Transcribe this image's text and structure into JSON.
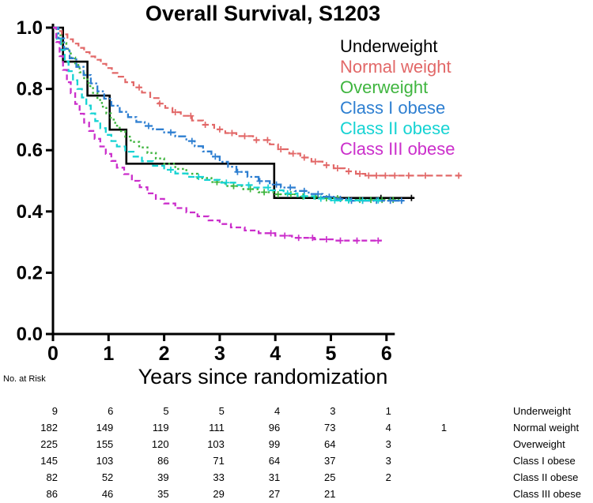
{
  "chart_data": {
    "type": "line",
    "subtype": "kaplan-meier-step",
    "title": "Overall Survival, S1203",
    "xlabel": "Years since randomization",
    "ylabel": "",
    "xlim": [
      0,
      7.5
    ],
    "ylim": [
      0.0,
      1.0
    ],
    "xticks": [
      0,
      1,
      2,
      3,
      4,
      5,
      6
    ],
    "xtick_labels": [
      "0",
      "1",
      "2",
      "3",
      "4",
      "5",
      "6"
    ],
    "yticks": [
      0.0,
      0.2,
      0.4,
      0.6,
      0.8,
      1.0
    ],
    "ytick_labels": [
      "0.0",
      "0.2",
      "0.4",
      "0.6",
      "0.8",
      "1.0"
    ],
    "grid": false,
    "legend_position": "upper-right-inside",
    "series": [
      {
        "name": "Underweight",
        "color": "#000000",
        "dash": "",
        "width": 2.6,
        "points": [
          [
            0,
            1.0
          ],
          [
            0.18,
            0.889
          ],
          [
            0.62,
            0.778
          ],
          [
            1.02,
            0.667
          ],
          [
            1.32,
            0.556
          ],
          [
            3.98,
            0.444
          ],
          [
            6.5,
            0.444
          ]
        ],
        "censor_x": [
          5.9,
          6.45
        ]
      },
      {
        "name": "Normal weight",
        "color": "#e26868",
        "dash": "8 4",
        "width": 2.2,
        "points": [
          [
            0,
            1.0
          ],
          [
            0.08,
            0.989
          ],
          [
            0.16,
            0.978
          ],
          [
            0.26,
            0.962
          ],
          [
            0.36,
            0.948
          ],
          [
            0.46,
            0.934
          ],
          [
            0.56,
            0.92
          ],
          [
            0.66,
            0.906
          ],
          [
            0.76,
            0.895
          ],
          [
            0.86,
            0.882
          ],
          [
            0.96,
            0.868
          ],
          [
            1.06,
            0.852
          ],
          [
            1.18,
            0.84
          ],
          [
            1.3,
            0.822
          ],
          [
            1.45,
            0.805
          ],
          [
            1.6,
            0.788
          ],
          [
            1.75,
            0.77
          ],
          [
            1.9,
            0.752
          ],
          [
            2.02,
            0.738
          ],
          [
            2.15,
            0.724
          ],
          [
            2.3,
            0.712
          ],
          [
            2.5,
            0.697
          ],
          [
            2.7,
            0.683
          ],
          [
            2.9,
            0.668
          ],
          [
            3.1,
            0.656
          ],
          [
            3.3,
            0.646
          ],
          [
            3.6,
            0.633
          ],
          [
            3.9,
            0.619
          ],
          [
            4.05,
            0.603
          ],
          [
            4.25,
            0.589
          ],
          [
            4.45,
            0.576
          ],
          [
            4.65,
            0.563
          ],
          [
            4.85,
            0.551
          ],
          [
            5.05,
            0.541
          ],
          [
            5.25,
            0.531
          ],
          [
            5.45,
            0.523
          ],
          [
            5.62,
            0.517
          ],
          [
            7.35,
            0.514
          ]
        ],
        "censor_x": [
          1.55,
          1.92,
          2.2,
          2.48,
          2.74,
          3.0,
          3.22,
          3.45,
          3.66,
          3.86,
          4.1,
          4.32,
          4.52,
          4.72,
          4.92,
          5.12,
          5.32,
          5.52,
          5.68,
          5.82,
          5.98,
          6.15,
          6.4,
          6.7,
          7.3
        ]
      },
      {
        "name": "Overweight",
        "color": "#3fb53f",
        "dash": "2.5 3.5",
        "width": 2.4,
        "points": [
          [
            0,
            1.0
          ],
          [
            0.08,
            0.975
          ],
          [
            0.16,
            0.95
          ],
          [
            0.24,
            0.926
          ],
          [
            0.32,
            0.902
          ],
          [
            0.4,
            0.878
          ],
          [
            0.48,
            0.854
          ],
          [
            0.56,
            0.831
          ],
          [
            0.64,
            0.809
          ],
          [
            0.72,
            0.787
          ],
          [
            0.8,
            0.764
          ],
          [
            0.88,
            0.742
          ],
          [
            0.96,
            0.72
          ],
          [
            1.04,
            0.7
          ],
          [
            1.12,
            0.68
          ],
          [
            1.2,
            0.662
          ],
          [
            1.3,
            0.644
          ],
          [
            1.4,
            0.627
          ],
          [
            1.55,
            0.609
          ],
          [
            1.7,
            0.591
          ],
          [
            1.85,
            0.573
          ],
          [
            2.0,
            0.556
          ],
          [
            2.2,
            0.539
          ],
          [
            2.4,
            0.523
          ],
          [
            2.6,
            0.509
          ],
          [
            2.85,
            0.496
          ],
          [
            3.1,
            0.483
          ],
          [
            3.4,
            0.473
          ],
          [
            3.7,
            0.463
          ],
          [
            4.0,
            0.456
          ],
          [
            4.4,
            0.449
          ],
          [
            4.8,
            0.443
          ],
          [
            5.2,
            0.438
          ],
          [
            6.25,
            0.433
          ]
        ],
        "censor_x": [
          2.95,
          3.25,
          3.55,
          3.8,
          4.05,
          4.28,
          4.5,
          4.72,
          4.92,
          5.12,
          5.32,
          5.52,
          5.72,
          5.92,
          6.12
        ]
      },
      {
        "name": "Class I obese",
        "color": "#2e7fd1",
        "dash": "10 3 2.5 3",
        "width": 2.3,
        "points": [
          [
            0,
            1.0
          ],
          [
            0.1,
            0.965
          ],
          [
            0.2,
            0.931
          ],
          [
            0.3,
            0.9
          ],
          [
            0.42,
            0.872
          ],
          [
            0.55,
            0.845
          ],
          [
            0.68,
            0.818
          ],
          [
            0.8,
            0.792
          ],
          [
            0.92,
            0.768
          ],
          [
            1.05,
            0.745
          ],
          [
            1.2,
            0.725
          ],
          [
            1.35,
            0.708
          ],
          [
            1.5,
            0.692
          ],
          [
            1.65,
            0.679
          ],
          [
            1.8,
            0.668
          ],
          [
            2.0,
            0.658
          ],
          [
            2.2,
            0.645
          ],
          [
            2.4,
            0.63
          ],
          [
            2.55,
            0.613
          ],
          [
            2.7,
            0.596
          ],
          [
            2.85,
            0.579
          ],
          [
            3.0,
            0.562
          ],
          [
            3.15,
            0.546
          ],
          [
            3.3,
            0.529
          ],
          [
            3.5,
            0.513
          ],
          [
            3.7,
            0.499
          ],
          [
            3.9,
            0.488
          ],
          [
            4.1,
            0.478
          ],
          [
            4.35,
            0.467
          ],
          [
            4.6,
            0.457
          ],
          [
            4.85,
            0.448
          ],
          [
            5.1,
            0.441
          ],
          [
            5.35,
            0.435
          ],
          [
            6.3,
            0.431
          ]
        ],
        "censor_x": [
          1.72,
          2.12,
          2.5,
          2.92,
          3.32,
          3.72,
          4.02,
          4.27,
          4.52,
          4.77,
          4.97,
          5.17,
          5.37,
          5.57,
          5.82,
          6.07,
          6.27
        ]
      },
      {
        "name": "Class II obese",
        "color": "#16d3d3",
        "dash": "8 4",
        "width": 2.3,
        "points": [
          [
            0,
            1.0
          ],
          [
            0.07,
            0.963
          ],
          [
            0.14,
            0.927
          ],
          [
            0.21,
            0.89
          ],
          [
            0.28,
            0.858
          ],
          [
            0.36,
            0.828
          ],
          [
            0.44,
            0.8
          ],
          [
            0.52,
            0.772
          ],
          [
            0.6,
            0.746
          ],
          [
            0.68,
            0.72
          ],
          [
            0.76,
            0.695
          ],
          [
            0.85,
            0.672
          ],
          [
            0.95,
            0.65
          ],
          [
            1.05,
            0.63
          ],
          [
            1.15,
            0.612
          ],
          [
            1.3,
            0.595
          ],
          [
            1.45,
            0.579
          ],
          [
            1.6,
            0.564
          ],
          [
            1.8,
            0.549
          ],
          [
            2.0,
            0.536
          ],
          [
            2.2,
            0.524
          ],
          [
            2.45,
            0.513
          ],
          [
            2.7,
            0.503
          ],
          [
            3.0,
            0.494
          ],
          [
            3.3,
            0.486
          ],
          [
            3.6,
            0.478
          ],
          [
            3.9,
            0.469
          ],
          [
            4.15,
            0.459
          ],
          [
            4.4,
            0.45
          ],
          [
            4.7,
            0.442
          ],
          [
            5.0,
            0.436
          ],
          [
            5.9,
            0.431
          ]
        ],
        "censor_x": [
          2.12,
          2.62,
          3.12,
          3.52,
          3.87,
          4.22,
          4.52,
          4.82,
          5.07,
          5.32,
          5.57,
          5.85
        ]
      },
      {
        "name": "Class III obese",
        "color": "#cb2fcb",
        "dash": "7 4",
        "width": 2.3,
        "points": [
          [
            0,
            1.0
          ],
          [
            0.06,
            0.953
          ],
          [
            0.12,
            0.907
          ],
          [
            0.18,
            0.862
          ],
          [
            0.25,
            0.822
          ],
          [
            0.32,
            0.786
          ],
          [
            0.4,
            0.751
          ],
          [
            0.48,
            0.719
          ],
          [
            0.56,
            0.69
          ],
          [
            0.65,
            0.663
          ],
          [
            0.75,
            0.637
          ],
          [
            0.85,
            0.612
          ],
          [
            0.95,
            0.588
          ],
          [
            1.05,
            0.565
          ],
          [
            1.15,
            0.543
          ],
          [
            1.28,
            0.522
          ],
          [
            1.42,
            0.5
          ],
          [
            1.56,
            0.479
          ],
          [
            1.7,
            0.459
          ],
          [
            1.85,
            0.441
          ],
          [
            2.0,
            0.426
          ],
          [
            2.2,
            0.411
          ],
          [
            2.4,
            0.397
          ],
          [
            2.6,
            0.384
          ],
          [
            2.8,
            0.371
          ],
          [
            3.0,
            0.359
          ],
          [
            3.2,
            0.348
          ],
          [
            3.45,
            0.338
          ],
          [
            3.7,
            0.329
          ],
          [
            4.0,
            0.321
          ],
          [
            4.3,
            0.314
          ],
          [
            4.7,
            0.309
          ],
          [
            5.1,
            0.305
          ],
          [
            5.9,
            0.302
          ]
        ],
        "censor_x": [
          3.92,
          4.17,
          4.42,
          4.67,
          4.92,
          5.17,
          5.47,
          5.85
        ]
      }
    ],
    "risk_table": {
      "label": "No. at Risk",
      "time_points": [
        0,
        1,
        2,
        3,
        4,
        5,
        6,
        7
      ],
      "rows": [
        {
          "name": "Underweight",
          "counts": [
            9,
            6,
            5,
            5,
            4,
            3,
            1
          ]
        },
        {
          "name": "Normal weight",
          "counts": [
            182,
            149,
            119,
            111,
            96,
            73,
            4,
            1
          ]
        },
        {
          "name": "Overweight",
          "counts": [
            225,
            155,
            120,
            103,
            99,
            64,
            3
          ]
        },
        {
          "name": "Class I obese",
          "counts": [
            145,
            103,
            86,
            71,
            64,
            37,
            3
          ]
        },
        {
          "name": "Class II obese",
          "counts": [
            82,
            52,
            39,
            33,
            31,
            25,
            2
          ]
        },
        {
          "name": "Class III obese",
          "counts": [
            86,
            46,
            35,
            29,
            27,
            21
          ]
        }
      ]
    }
  }
}
